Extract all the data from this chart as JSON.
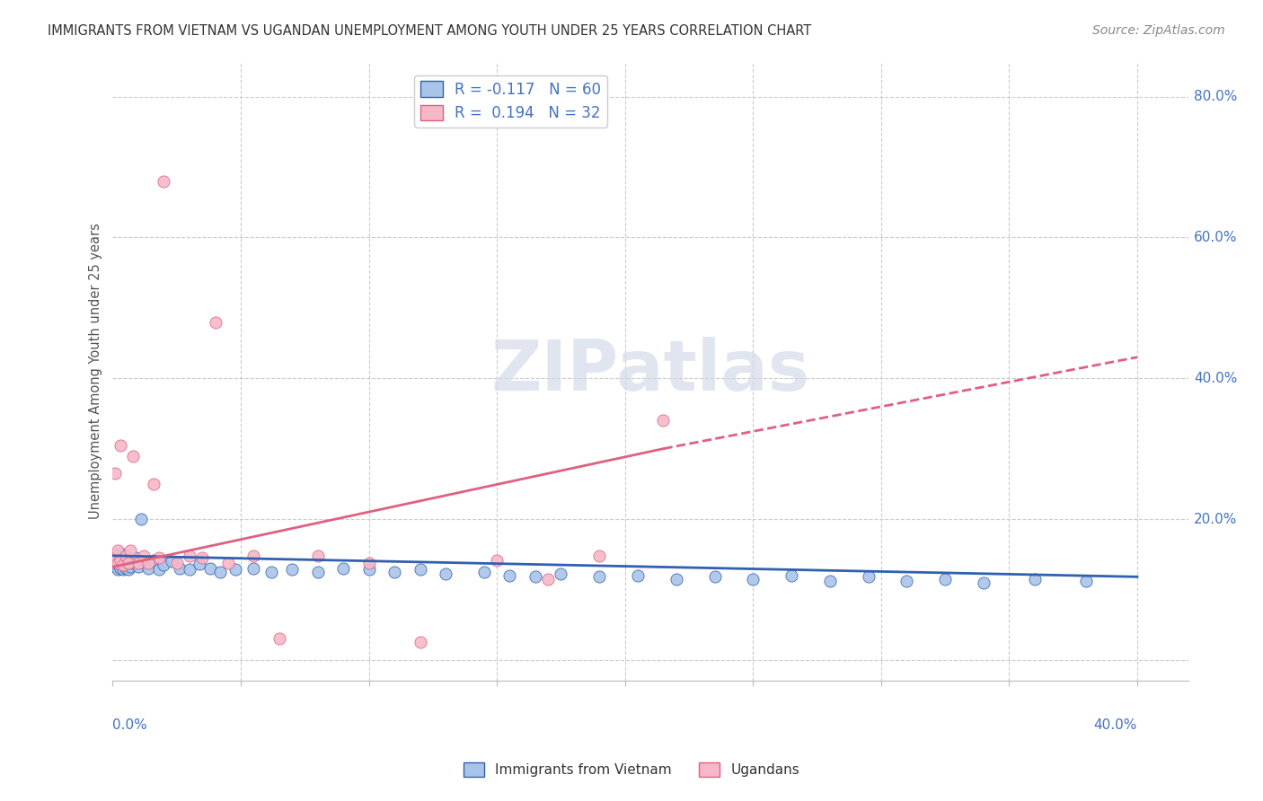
{
  "title": "IMMIGRANTS FROM VIETNAM VS UGANDAN UNEMPLOYMENT AMONG YOUTH UNDER 25 YEARS CORRELATION CHART",
  "source": "Source: ZipAtlas.com",
  "ylabel": "Unemployment Among Youth under 25 years",
  "xlim": [
    0.0,
    0.42
  ],
  "ylim": [
    -0.03,
    0.85
  ],
  "legend1_label": "R = -0.117   N = 60",
  "legend2_label": "R =  0.194   N = 32",
  "series1_color": "#aac4e8",
  "series2_color": "#f5b8c8",
  "trendline1_color": "#3060b0",
  "trendline2_color": "#e06080",
  "watermark": "ZIPatlas",
  "watermark_color": "#d0d8e8",
  "vietnam_x": [
    0.001,
    0.001,
    0.001,
    0.002,
    0.002,
    0.002,
    0.002,
    0.003,
    0.003,
    0.003,
    0.003,
    0.004,
    0.004,
    0.005,
    0.005,
    0.006,
    0.006,
    0.007,
    0.008,
    0.009,
    0.01,
    0.011,
    0.012,
    0.014,
    0.016,
    0.018,
    0.02,
    0.023,
    0.026,
    0.03,
    0.034,
    0.038,
    0.042,
    0.048,
    0.055,
    0.062,
    0.07,
    0.08,
    0.09,
    0.1,
    0.11,
    0.12,
    0.13,
    0.145,
    0.155,
    0.165,
    0.175,
    0.19,
    0.205,
    0.22,
    0.235,
    0.25,
    0.265,
    0.28,
    0.295,
    0.31,
    0.325,
    0.34,
    0.36,
    0.38
  ],
  "vietnam_y": [
    0.132,
    0.14,
    0.148,
    0.128,
    0.136,
    0.142,
    0.15,
    0.13,
    0.138,
    0.145,
    0.152,
    0.128,
    0.136,
    0.13,
    0.142,
    0.128,
    0.14,
    0.132,
    0.138,
    0.145,
    0.132,
    0.2,
    0.138,
    0.13,
    0.142,
    0.128,
    0.135,
    0.14,
    0.13,
    0.128,
    0.136,
    0.13,
    0.125,
    0.128,
    0.13,
    0.125,
    0.128,
    0.125,
    0.13,
    0.128,
    0.125,
    0.128,
    0.122,
    0.125,
    0.12,
    0.118,
    0.122,
    0.118,
    0.12,
    0.115,
    0.118,
    0.115,
    0.12,
    0.112,
    0.118,
    0.112,
    0.115,
    0.11,
    0.115,
    0.112
  ],
  "uganda_x": [
    0.001,
    0.001,
    0.001,
    0.002,
    0.002,
    0.003,
    0.003,
    0.004,
    0.005,
    0.006,
    0.007,
    0.008,
    0.01,
    0.012,
    0.014,
    0.016,
    0.018,
    0.02,
    0.025,
    0.03,
    0.035,
    0.04,
    0.045,
    0.055,
    0.065,
    0.08,
    0.1,
    0.12,
    0.15,
    0.17,
    0.19,
    0.215
  ],
  "uganda_y": [
    0.14,
    0.148,
    0.265,
    0.155,
    0.138,
    0.305,
    0.142,
    0.135,
    0.148,
    0.138,
    0.155,
    0.29,
    0.138,
    0.148,
    0.138,
    0.25,
    0.145,
    0.68,
    0.138,
    0.148,
    0.145,
    0.48,
    0.138,
    0.148,
    0.03,
    0.148,
    0.138,
    0.025,
    0.142,
    0.115,
    0.148,
    0.34
  ],
  "viet_trend_x0": 0.0,
  "viet_trend_x1": 0.4,
  "viet_trend_y0": 0.148,
  "viet_trend_y1": 0.118,
  "ug_trend_x0": 0.0,
  "ug_trend_x1": 0.215,
  "ug_trend_y0": 0.132,
  "ug_trend_y1": 0.3,
  "ug_trend_ext_x0": 0.215,
  "ug_trend_ext_x1": 0.4,
  "ug_trend_ext_y0": 0.3,
  "ug_trend_ext_y1": 0.43
}
